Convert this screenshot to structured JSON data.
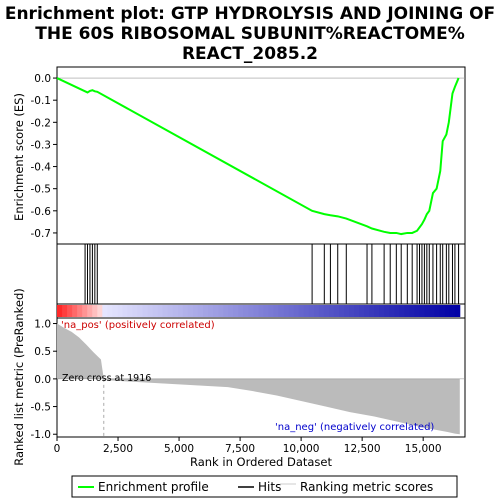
{
  "chart_data": {
    "type": "line",
    "title_lines": [
      "Enrichment plot: GTP HYDROLYSIS AND JOINING OF",
      "THE 60S RIBOSOMAL SUBUNIT%REACTOME%",
      "REACT_2085.2"
    ],
    "xlabel": "Rank in Ordered Dataset",
    "ylabel_top": "Enrichment score (ES)",
    "ylabel_bottom": "Ranked list metric (PreRanked)",
    "xlim": [
      0,
      17000
    ],
    "es_ylim": [
      -0.75,
      0.05
    ],
    "metric_ylim": [
      -1.05,
      1.1
    ],
    "x_ticks": [
      0,
      2500,
      5000,
      7500,
      10000,
      12500,
      15000
    ],
    "x_tick_labels": [
      "0",
      "2,500",
      "5,000",
      "7,500",
      "10,000",
      "12,500",
      "15,000"
    ],
    "es_ticks": [
      0.0,
      -0.1,
      -0.2,
      -0.3,
      -0.4,
      -0.5,
      -0.6,
      -0.7
    ],
    "es_tick_labels": [
      "0.0",
      "-0.1",
      "-0.2",
      "-0.3",
      "-0.4",
      "-0.5",
      "-0.6",
      "-0.7"
    ],
    "metric_ticks": [
      1.0,
      0.5,
      0.0,
      -0.5,
      -1.0
    ],
    "metric_tick_labels": [
      "1.0",
      "0.5",
      "0.0",
      "-0.5",
      "-1.0"
    ],
    "enrichment_profile": {
      "x": [
        0,
        1150,
        1250,
        1350,
        1450,
        1550,
        1650,
        10450,
        10950,
        11200,
        11500,
        11850,
        12700,
        12900,
        13400,
        13650,
        13900,
        14100,
        14350,
        14550,
        14750,
        14950,
        15050,
        15150,
        15250,
        15400,
        15550,
        15700,
        15800,
        15950,
        16050,
        16200,
        16300,
        16450
      ],
      "y": [
        0.0,
        -0.06,
        -0.065,
        -0.058,
        -0.055,
        -0.06,
        -0.062,
        -0.6,
        -0.615,
        -0.62,
        -0.625,
        -0.635,
        -0.67,
        -0.68,
        -0.695,
        -0.7,
        -0.7,
        -0.705,
        -0.7,
        -0.7,
        -0.69,
        -0.66,
        -0.64,
        -0.615,
        -0.6,
        -0.52,
        -0.5,
        -0.42,
        -0.285,
        -0.255,
        -0.2,
        -0.07,
        -0.04,
        0.0
      ]
    },
    "hits": [
      1150,
      1250,
      1350,
      1450,
      1550,
      1650,
      10450,
      10950,
      11200,
      11500,
      11850,
      12700,
      12900,
      13400,
      13650,
      13900,
      14100,
      14350,
      14550,
      14750,
      14850,
      14950,
      15050,
      15150,
      15250,
      15400,
      15550,
      15700,
      15800,
      15950,
      16050,
      16200,
      16300,
      16450
    ],
    "metric_profile": {
      "x": [
        0,
        300,
        600,
        900,
        1200,
        1500,
        1800,
        1916,
        1950,
        3000,
        5000,
        7000,
        8000,
        9000,
        10000,
        11000,
        12000,
        13000,
        14000,
        15000,
        15500,
        16000,
        16300,
        16500
      ],
      "y": [
        1.0,
        0.92,
        0.85,
        0.75,
        0.62,
        0.48,
        0.35,
        0.0,
        -0.02,
        -0.05,
        -0.1,
        -0.15,
        -0.22,
        -0.3,
        -0.4,
        -0.5,
        -0.6,
        -0.68,
        -0.78,
        -0.88,
        -0.92,
        -0.96,
        -0.99,
        -1.0
      ]
    },
    "zero_cross_rank": 1916,
    "annotations": {
      "pos": "'na_pos' (positively correlated)",
      "neg": "'na_neg' (negatively correlated)",
      "zero": "Zero cross at 1916"
    },
    "legend": {
      "items": [
        "Enrichment profile",
        "Hits",
        "Ranking metric scores"
      ],
      "colors": [
        "#00ff00",
        "#000000",
        "#bbbbbb"
      ]
    },
    "colors": {
      "profile": "#00ff00",
      "hits": "#000000",
      "metric_fill": "#bbbbbb",
      "grid_dash": "#aaaaaa",
      "pos_red": "#ff0000",
      "neg_blue": "#0000cc"
    }
  }
}
